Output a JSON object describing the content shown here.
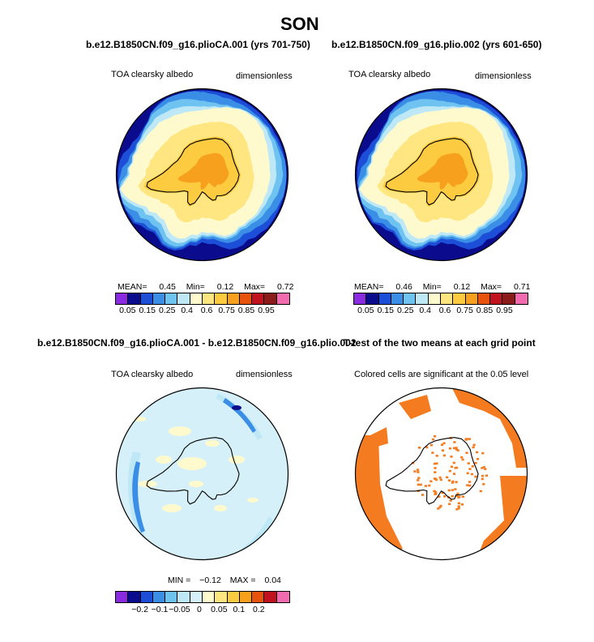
{
  "figure": {
    "title": "SON"
  },
  "chart_data": [
    {
      "type": "heatmap",
      "projection": "south-polar-stereographic",
      "title": "b.e12.B1850CN.f09_g16.plioCA.001 (yrs 701-750)",
      "variable_label": "TOA clearsky albedo",
      "units_label": "dimensionless",
      "stats": {
        "mean_label": "MEAN=",
        "mean": "0.45",
        "min_label": "Min=",
        "min": "0.12",
        "max_label": "Max=",
        "max": "0.72"
      },
      "colorbar": {
        "levels": [
          "0.05",
          "0.15",
          "0.25",
          "0.4",
          "0.6",
          "0.75",
          "0.85",
          "0.95"
        ],
        "colors": [
          "#8a2be2",
          "#0b0b8e",
          "#1c4ed8",
          "#3a8ee6",
          "#6fc3f0",
          "#bfe8f7",
          "#fffacd",
          "#ffe680",
          "#fdcb3f",
          "#f7a01e",
          "#e8530e",
          "#c1121f",
          "#8b1a1a",
          "#f06cae"
        ]
      }
    },
    {
      "type": "heatmap",
      "projection": "south-polar-stereographic",
      "title": "b.e12.B1850CN.f09_g16.plio.002 (yrs 601-650)",
      "variable_label": "TOA clearsky albedo",
      "units_label": "dimensionless",
      "stats": {
        "mean_label": "MEAN=",
        "mean": "0.46",
        "min_label": "Min=",
        "min": "0.12",
        "max_label": "Max=",
        "max": "0.71"
      },
      "colorbar": {
        "levels": [
          "0.05",
          "0.15",
          "0.25",
          "0.4",
          "0.6",
          "0.75",
          "0.85",
          "0.95"
        ],
        "colors": [
          "#8a2be2",
          "#0b0b8e",
          "#1c4ed8",
          "#3a8ee6",
          "#6fc3f0",
          "#bfe8f7",
          "#fffacd",
          "#ffe680",
          "#fdcb3f",
          "#f7a01e",
          "#e8530e",
          "#c1121f",
          "#8b1a1a",
          "#f06cae"
        ]
      }
    },
    {
      "type": "heatmap",
      "projection": "south-polar-stereographic",
      "title": "b.e12.B1850CN.f09_g16.plioCA.001 - b.e12.B1850CN.f09_g16.plio.002",
      "variable_label": "TOA clearsky albedo",
      "units_label": "dimensionless",
      "stats": {
        "min_label": "MIN =",
        "min": "−0.12",
        "max_label": "MAX =",
        "max": "0.04"
      },
      "colorbar": {
        "levels": [
          "−0.2",
          "−0.1",
          "−0.05",
          "0",
          "0.05",
          "0.1",
          "0.2"
        ],
        "colors": [
          "#8a2be2",
          "#0b0b8e",
          "#1c4ed8",
          "#3a8ee6",
          "#6fc3f0",
          "#bfe8f7",
          "#d6f0fa",
          "#fffacd",
          "#ffe680",
          "#fdcb3f",
          "#f7a01e",
          "#e8530e",
          "#c1121f",
          "#f06cae"
        ]
      }
    },
    {
      "type": "heatmap",
      "projection": "south-polar-stereographic",
      "title": "T-test of the two means at each grid point",
      "variable_label": "Colored cells are significant at the 0.05 level",
      "significance_color": "#f47b1f"
    }
  ]
}
